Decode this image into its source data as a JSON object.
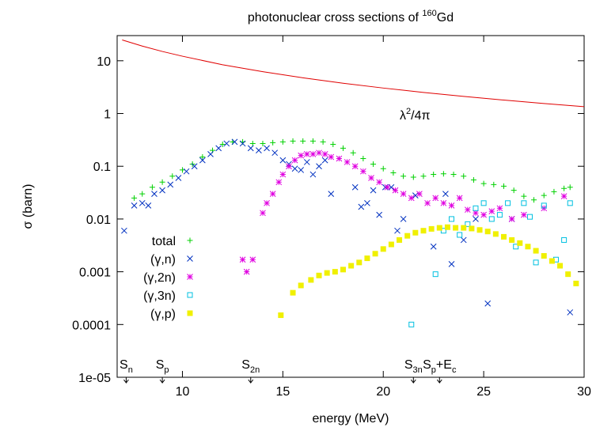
{
  "chart_data": {
    "type": "scatter",
    "title": [
      "photonuclear cross sections of ",
      "160",
      "Gd"
    ],
    "xlabel": "energy (MeV)",
    "ylabel": "σ (barn)",
    "xlim": [
      6.75,
      30
    ],
    "ylim": [
      1e-05,
      30
    ],
    "log_y": true,
    "xticks": [
      10,
      15,
      20,
      25,
      30
    ],
    "yticks": [
      {
        "value": 1e-05,
        "label": "1e-05"
      },
      0.0001,
      0.001,
      0.01,
      0.1,
      1,
      10
    ],
    "legend": "lower left",
    "annotation": [
      "λ",
      "2",
      "/4π"
    ],
    "curve": {
      "color": "#e00000",
      "x": [
        7,
        8,
        9,
        10,
        12,
        14,
        16,
        18,
        20,
        22,
        24,
        26,
        28,
        30
      ],
      "values": [
        24.8,
        19,
        15,
        12.2,
        8.4,
        6.2,
        4.75,
        3.75,
        3.04,
        2.51,
        2.11,
        1.8,
        1.55,
        1.35
      ]
    },
    "thresholds": [
      {
        "x": 7.2,
        "label": [
          "S",
          "n"
        ]
      },
      {
        "x": 9.0,
        "label": [
          "S",
          "p"
        ]
      },
      {
        "x": 13.4,
        "label": [
          "S",
          "2n"
        ]
      },
      {
        "x": 21.5,
        "label": [
          "S",
          "3n"
        ]
      },
      {
        "x": 22.8,
        "label": [
          "S",
          "p",
          "+E",
          "c"
        ]
      }
    ],
    "series": [
      {
        "name": "total",
        "color": "#00d000",
        "symbol": "plus",
        "x": [
          7.6,
          8,
          8.5,
          9,
          9.5,
          10,
          10.5,
          11,
          11.5,
          12,
          12.5,
          13,
          13.5,
          14,
          14.5,
          15,
          15.5,
          16,
          16.5,
          17,
          17.5,
          18,
          18.5,
          19,
          19.5,
          20,
          20.5,
          21,
          21.5,
          22,
          22.5,
          23,
          23.5,
          24,
          24.5,
          25,
          25.5,
          26,
          26.5,
          27,
          27.5,
          28,
          28.5,
          29,
          29.3
        ],
        "values": [
          0.025,
          0.03,
          0.04,
          0.05,
          0.065,
          0.085,
          0.11,
          0.15,
          0.2,
          0.26,
          0.29,
          0.29,
          0.27,
          0.27,
          0.28,
          0.29,
          0.3,
          0.3,
          0.3,
          0.29,
          0.26,
          0.22,
          0.18,
          0.14,
          0.11,
          0.09,
          0.075,
          0.065,
          0.062,
          0.065,
          0.07,
          0.072,
          0.07,
          0.065,
          0.055,
          0.047,
          0.045,
          0.042,
          0.035,
          0.027,
          0.023,
          0.028,
          0.033,
          0.038,
          0.04
        ]
      },
      {
        "name": "(γ,n)",
        "color": "#0030c0",
        "symbol": "cross",
        "x": [
          7.1,
          7.6,
          8,
          8.3,
          8.6,
          9,
          9.4,
          9.8,
          10.2,
          10.6,
          11,
          11.4,
          11.8,
          12.2,
          12.6,
          13,
          13.4,
          13.8,
          14.2,
          14.6,
          15,
          15.3,
          15.6,
          15.9,
          16.2,
          16.5,
          16.8,
          17.1,
          17.4,
          18.6,
          18.9,
          19.2,
          19.5,
          19.8,
          20.1,
          20.4,
          20.7,
          21,
          21.6,
          22.5,
          23.1,
          23.4,
          24,
          24.6,
          25.2,
          26.4,
          29.3
        ],
        "values": [
          0.006,
          0.018,
          0.02,
          0.018,
          0.03,
          0.035,
          0.045,
          0.06,
          0.08,
          0.1,
          0.13,
          0.17,
          0.22,
          0.27,
          0.29,
          0.27,
          0.22,
          0.2,
          0.22,
          0.18,
          0.13,
          0.11,
          0.09,
          0.085,
          0.12,
          0.07,
          0.1,
          0.13,
          0.03,
          0.04,
          0.017,
          0.02,
          0.035,
          0.012,
          0.04,
          0.04,
          0.006,
          0.01,
          0.028,
          0.003,
          0.03,
          0.0014,
          0.004,
          0.01,
          0.00025,
          0.01,
          0.00017
        ]
      },
      {
        "name": "(γ,2n)",
        "color": "#e000e0",
        "symbol": "star",
        "x": [
          13,
          13.2,
          13.5,
          14,
          14.2,
          14.5,
          14.8,
          15,
          15.3,
          15.6,
          15.9,
          16.2,
          16.5,
          16.8,
          17.1,
          17.4,
          17.8,
          18.2,
          18.6,
          19,
          19.4,
          19.8,
          20.2,
          20.6,
          21,
          21.4,
          21.8,
          22.2,
          22.6,
          23,
          23.4,
          23.8,
          24.2,
          24.6,
          25,
          25.4,
          25.8,
          26.4,
          27,
          28,
          29
        ],
        "values": [
          0.0017,
          0.001,
          0.0017,
          0.013,
          0.02,
          0.03,
          0.05,
          0.07,
          0.1,
          0.13,
          0.16,
          0.17,
          0.17,
          0.18,
          0.17,
          0.15,
          0.14,
          0.12,
          0.1,
          0.08,
          0.06,
          0.05,
          0.04,
          0.035,
          0.03,
          0.025,
          0.03,
          0.02,
          0.025,
          0.02,
          0.018,
          0.025,
          0.015,
          0.013,
          0.012,
          0.014,
          0.016,
          0.01,
          0.012,
          0.016,
          0.027
        ]
      },
      {
        "name": "(γ,3n)",
        "color": "#00c0e0",
        "symbol": "square",
        "x": [
          21.4,
          22.6,
          23,
          23.4,
          23.8,
          24.2,
          24.6,
          25,
          25.4,
          25.8,
          26.2,
          26.6,
          27,
          27.3,
          27.6,
          28,
          28.6,
          29,
          29.3
        ],
        "values": [
          0.0001,
          0.0009,
          0.006,
          0.01,
          0.005,
          0.008,
          0.016,
          0.02,
          0.01,
          0.012,
          0.02,
          0.003,
          0.02,
          0.011,
          0.0015,
          0.018,
          0.0017,
          0.004,
          0.02
        ]
      },
      {
        "name": "(γ,p)",
        "color": "#f0f000",
        "symbol": "filled-square",
        "x": [
          14.9,
          15.5,
          15.9,
          16.4,
          16.8,
          17.2,
          17.6,
          18,
          18.4,
          18.8,
          19.2,
          19.6,
          20,
          20.4,
          20.8,
          21.2,
          21.6,
          22,
          22.4,
          22.8,
          23.2,
          23.6,
          24,
          24.4,
          24.8,
          25.2,
          25.6,
          26,
          26.4,
          26.8,
          27.2,
          27.6,
          28,
          28.4,
          28.8,
          29.2,
          29.6
        ],
        "values": [
          0.00015,
          0.0004,
          0.00055,
          0.0007,
          0.00085,
          0.00095,
          0.001,
          0.0011,
          0.0013,
          0.0015,
          0.0018,
          0.0022,
          0.0027,
          0.0033,
          0.004,
          0.0048,
          0.0055,
          0.006,
          0.0065,
          0.0068,
          0.007,
          0.0068,
          0.0068,
          0.0066,
          0.0062,
          0.0058,
          0.0052,
          0.0046,
          0.004,
          0.0035,
          0.003,
          0.0025,
          0.002,
          0.0016,
          0.0013,
          0.0009,
          0.0006
        ]
      }
    ]
  }
}
